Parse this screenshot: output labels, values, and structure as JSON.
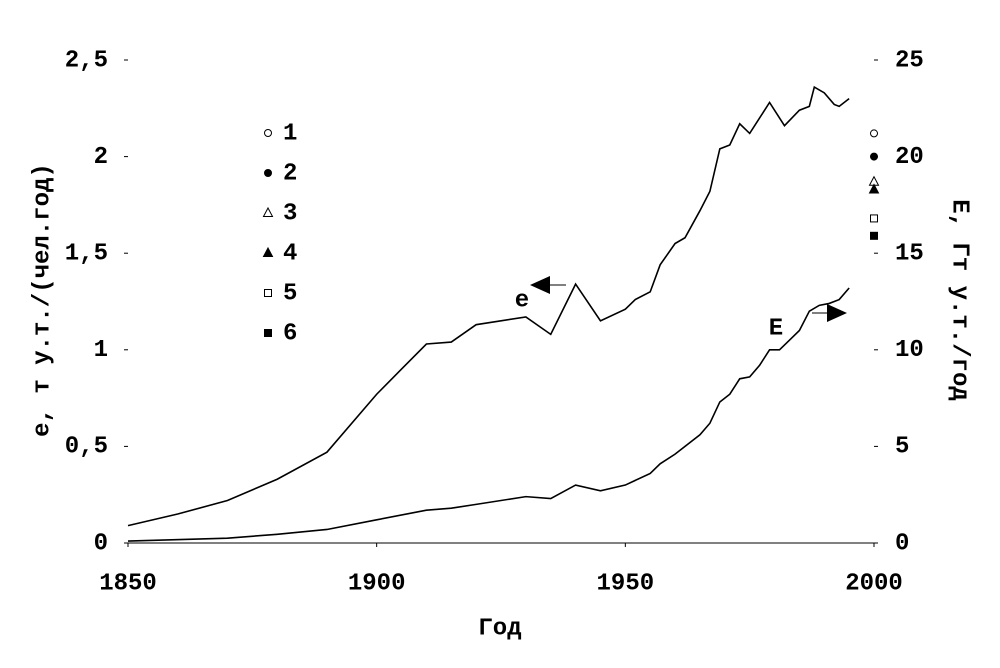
{
  "chart_data": {
    "type": "line",
    "xlabel": "Год",
    "ylabel": "e, т у.т./(чел.год)",
    "y2label": "E, Гт у.т./год",
    "xlim": [
      1850,
      2000
    ],
    "xticks": [
      1850,
      1900,
      1950,
      2000
    ],
    "ylim": [
      0,
      2.5
    ],
    "yticks": [
      0,
      {
        "value": 0.5,
        "label": "0,5"
      },
      1,
      {
        "value": 1.5,
        "label": "1,5"
      },
      2,
      {
        "value": 2.5,
        "label": "2,5"
      }
    ],
    "y2lim": [
      0,
      25
    ],
    "y2ticks": [
      0,
      5,
      10,
      15,
      20,
      25
    ],
    "color": "#000000",
    "annotations": [
      "e",
      "E"
    ],
    "series": [
      {
        "name": "e",
        "axis": "y",
        "x": [
          1850,
          1860,
          1870,
          1880,
          1890,
          1900,
          1905,
          1910,
          1915,
          1920,
          1925,
          1930,
          1935,
          1940,
          1945,
          1950,
          1952,
          1955,
          1957,
          1960,
          1962,
          1965,
          1967,
          1969,
          1971,
          1973,
          1975,
          1977,
          1979,
          1982,
          1985,
          1987,
          1988,
          1990,
          1992,
          1993,
          1995
        ],
        "values": [
          0.09,
          0.15,
          0.22,
          0.33,
          0.47,
          0.77,
          0.9,
          1.03,
          1.04,
          1.13,
          1.15,
          1.17,
          1.08,
          1.34,
          1.15,
          1.21,
          1.26,
          1.3,
          1.44,
          1.55,
          1.58,
          1.72,
          1.82,
          2.04,
          2.06,
          2.17,
          2.12,
          2.2,
          2.28,
          2.16,
          2.24,
          2.26,
          2.36,
          2.33,
          2.27,
          2.26,
          2.3
        ]
      },
      {
        "name": "E",
        "axis": "y2",
        "x": [
          1850,
          1870,
          1880,
          1890,
          1900,
          1910,
          1915,
          1920,
          1930,
          1935,
          1940,
          1945,
          1950,
          1955,
          1957,
          1960,
          1965,
          1967,
          1969,
          1971,
          1973,
          1975,
          1977,
          1979,
          1981,
          1983,
          1985,
          1987,
          1989,
          1991,
          1993,
          1995
        ],
        "values": [
          0.1,
          0.25,
          0.45,
          0.7,
          1.2,
          1.7,
          1.8,
          2.0,
          2.4,
          2.3,
          3.0,
          2.7,
          3.0,
          3.6,
          4.1,
          4.6,
          5.6,
          6.2,
          7.3,
          7.7,
          8.5,
          8.6,
          9.2,
          10.0,
          10.0,
          10.5,
          11.0,
          12.0,
          12.3,
          12.4,
          12.6,
          13.2
        ]
      }
    ],
    "points": [
      {
        "name": "1",
        "marker": "open-circle",
        "x": [
          2000
        ],
        "values": [
          2.12
        ]
      },
      {
        "name": "2",
        "marker": "filled-circle",
        "x": [
          2000
        ],
        "values": [
          2.0
        ]
      },
      {
        "name": "3",
        "marker": "open-triangle",
        "x": [
          2000
        ],
        "values": [
          1.87
        ]
      },
      {
        "name": "4",
        "marker": "filled-triangle",
        "x": [
          2000
        ],
        "values": [
          1.83
        ]
      },
      {
        "name": "5",
        "marker": "open-square",
        "x": [
          2000
        ],
        "values": [
          1.68
        ]
      },
      {
        "name": "6",
        "marker": "filled-square",
        "x": [
          2000
        ],
        "values": [
          1.59
        ]
      }
    ]
  }
}
